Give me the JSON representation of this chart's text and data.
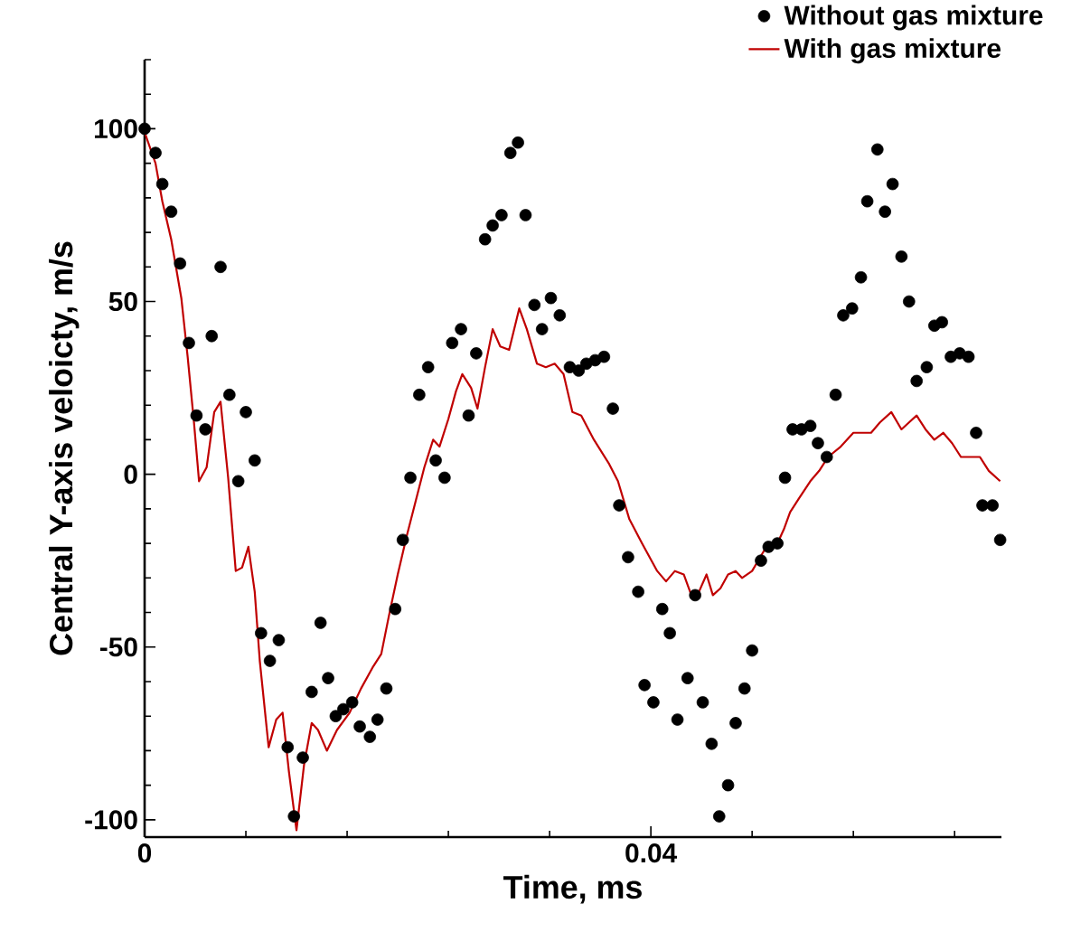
{
  "chart_data": {
    "type": "scatter",
    "xlabel": "Time, ms",
    "ylabel": "Central Y-axis veloicty, m/s",
    "xlim": [
      0,
      0.0677
    ],
    "ylim": [
      -105,
      120
    ],
    "xticks": [
      0,
      {
        "value": 0.008,
        "label": null
      },
      {
        "value": 0.016,
        "label": null
      },
      {
        "value": 0.024,
        "label": null
      },
      {
        "value": 0.032,
        "label": null
      },
      0.04,
      {
        "value": 0.048,
        "label": null
      },
      {
        "value": 0.056,
        "label": null
      },
      {
        "value": 0.064,
        "label": null
      }
    ],
    "yticks": [
      -100,
      {
        "value": -90,
        "label": null
      },
      {
        "value": -80,
        "label": null
      },
      {
        "value": -70,
        "label": null
      },
      {
        "value": -60,
        "label": null
      },
      -50,
      {
        "value": -40,
        "label": null
      },
      {
        "value": -30,
        "label": null
      },
      {
        "value": -20,
        "label": null
      },
      {
        "value": -10,
        "label": null
      },
      0,
      {
        "value": 10,
        "label": null
      },
      {
        "value": 20,
        "label": null
      },
      {
        "value": 30,
        "label": null
      },
      {
        "value": 40,
        "label": null
      },
      50,
      {
        "value": 60,
        "label": null
      },
      {
        "value": 70,
        "label": null
      },
      {
        "value": 80,
        "label": null
      },
      {
        "value": 90,
        "label": null
      },
      100,
      {
        "value": 110,
        "label": null
      },
      {
        "value": 120,
        "label": null
      }
    ],
    "legend": "top right",
    "grid": false,
    "series": [
      {
        "name": "Without gas mixture",
        "marker": "circle",
        "color": "#000000",
        "x": [
          0,
          0.00086,
          0.0014,
          0.0021,
          0.0028,
          0.0035,
          0.0041,
          0.0048,
          0.0053,
          0.006,
          0.0067,
          0.0074,
          0.008,
          0.0087,
          0.0092,
          0.0099,
          0.0106,
          0.0113,
          0.0118,
          0.0125,
          0.0132,
          0.0139,
          0.0145,
          0.0151,
          0.0157,
          0.0164,
          0.017,
          0.0178,
          0.0184,
          0.0191,
          0.0198,
          0.0204,
          0.021,
          0.0217,
          0.0224,
          0.023,
          0.0237,
          0.0243,
          0.025,
          0.0256,
          0.0262,
          0.0269,
          0.0275,
          0.0282,
          0.0289,
          0.0295,
          0.0301,
          0.0308,
          0.0314,
          0.0321,
          0.0328,
          0.0336,
          0.0343,
          0.0349,
          0.0356,
          0.0363,
          0.037,
          0.0375,
          0.0382,
          0.039,
          0.0395,
          0.0402,
          0.0409,
          0.0415,
          0.0421,
          0.0429,
          0.0435,
          0.0441,
          0.0448,
          0.0454,
          0.0461,
          0.0467,
          0.0474,
          0.048,
          0.0487,
          0.0493,
          0.05,
          0.0506,
          0.0512,
          0.0519,
          0.0526,
          0.0532,
          0.0539,
          0.0546,
          0.0552,
          0.0559,
          0.0566,
          0.0571,
          0.0579,
          0.0585,
          0.0591,
          0.0598,
          0.0604,
          0.061,
          0.0618,
          0.0624,
          0.063,
          0.0637,
          0.0644,
          0.0651,
          0.0657,
          0.0662,
          0.067,
          0.0676
        ],
        "values": [
          100,
          93,
          84,
          76,
          61,
          38,
          17,
          13,
          40,
          60,
          23,
          -2,
          18,
          4,
          -46,
          -54,
          -48,
          -79,
          -99,
          -82,
          -63,
          -43,
          -59,
          -70,
          -68,
          -66,
          -73,
          -76,
          -71,
          -62,
          -39,
          -19,
          -1,
          23,
          31,
          4,
          -1,
          38,
          42,
          17,
          35,
          68,
          72,
          75,
          93,
          96,
          75,
          49,
          42,
          51,
          46,
          31,
          30,
          32,
          33,
          34,
          19,
          -9,
          -24,
          -34,
          -61,
          -66,
          -39,
          -46,
          -71,
          -59,
          -35,
          -66,
          -78,
          -99,
          -90,
          -72,
          -62,
          -51,
          -25,
          -21,
          -20,
          -1,
          13,
          13,
          14,
          9,
          5,
          23,
          46,
          48,
          57,
          79,
          94,
          76,
          84,
          63,
          50,
          27,
          31,
          43,
          44,
          34,
          35,
          34,
          12,
          -9,
          -9,
          -19
        ]
      },
      {
        "name": "With gas mixture",
        "type": "line",
        "marker": "none",
        "color": "#c00000",
        "x": [
          0,
          0.00086,
          0.0014,
          0.0021,
          0.0029,
          0.0034,
          0.0039,
          0.0043,
          0.0049,
          0.0055,
          0.006,
          0.0066,
          0.0072,
          0.0077,
          0.0082,
          0.0087,
          0.0091,
          0.0098,
          0.0104,
          0.0109,
          0.0114,
          0.012,
          0.0126,
          0.0132,
          0.0137,
          0.0144,
          0.0152,
          0.0162,
          0.0171,
          0.018,
          0.0187,
          0.0193,
          0.02,
          0.0207,
          0.0214,
          0.0221,
          0.0228,
          0.0233,
          0.024,
          0.0246,
          0.0251,
          0.0258,
          0.0263,
          0.0269,
          0.0275,
          0.0281,
          0.0288,
          0.0296,
          0.0302,
          0.031,
          0.0317,
          0.0324,
          0.0331,
          0.0338,
          0.0345,
          0.0355,
          0.0367,
          0.0374,
          0.0383,
          0.0393,
          0.0405,
          0.0412,
          0.0419,
          0.0426,
          0.0432,
          0.0438,
          0.0444,
          0.0449,
          0.0455,
          0.0461,
          0.0467,
          0.0472,
          0.048,
          0.0488,
          0.0493,
          0.05,
          0.0505,
          0.051,
          0.0517,
          0.0526,
          0.0533,
          0.054,
          0.055,
          0.056,
          0.0567,
          0.0574,
          0.0581,
          0.059,
          0.0598,
          0.0604,
          0.061,
          0.0617,
          0.0624,
          0.0631,
          0.0638,
          0.0645,
          0.0652,
          0.066,
          0.0667,
          0.0676
        ],
        "values": [
          99,
          90,
          79,
          68,
          51,
          34,
          15,
          -2,
          2,
          18,
          21,
          -1,
          -28,
          -27,
          -21,
          -34,
          -54,
          -79,
          -71,
          -69,
          -86,
          -103,
          -84,
          -72,
          -74,
          -80,
          -74,
          -69,
          -62,
          -56,
          -52,
          -41,
          -29,
          -18,
          -8,
          2,
          10,
          8,
          16,
          24,
          29,
          25,
          19,
          31,
          42,
          37,
          36,
          48,
          42,
          32,
          31,
          32,
          29,
          18,
          17,
          10,
          3,
          -2,
          -13,
          -20,
          -28,
          -31,
          -28,
          -29,
          -35,
          -34,
          -29,
          -35,
          -33,
          -29,
          -28,
          -30,
          -28,
          -23,
          -20,
          -20,
          -16,
          -11,
          -7,
          -2,
          1,
          5,
          8,
          12,
          12,
          12,
          15,
          18,
          13,
          15,
          17,
          13,
          10,
          12,
          9,
          5,
          5,
          5,
          1,
          -2
        ]
      }
    ]
  }
}
